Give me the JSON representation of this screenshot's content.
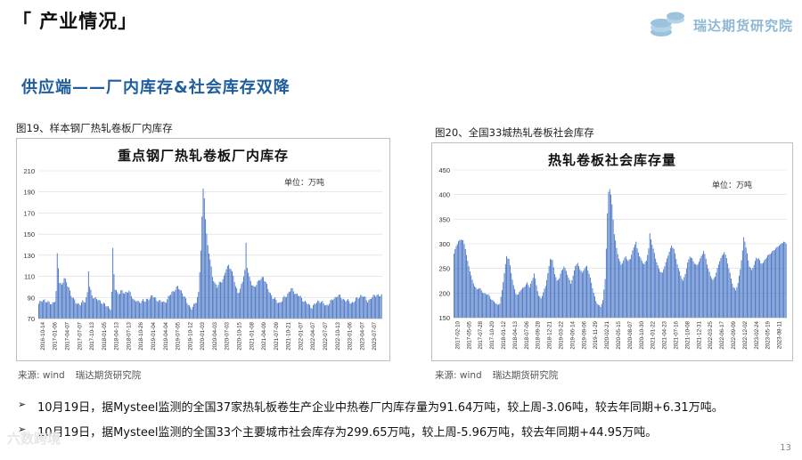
{
  "header": {
    "section_title": "「 产业情况」",
    "logo_text": "瑞达期货研究院",
    "subtitle": "供应端——厂内库存&社会库存双降"
  },
  "figures": [
    {
      "caption": "图19、样本钢厂热轧卷板厂内库存",
      "source_label": "来源:  wind",
      "source_org": "瑞达期货研究院"
    },
    {
      "caption": "图20、全国33城热轧卷板社会库存",
      "source_label": "来源:  wind",
      "source_org": "瑞达期货研究院"
    }
  ],
  "bullets": [
    "10月19日，据Mysteel监测的全国37家热轧板卷生产企业中热卷厂内库存量为91.64万吨，较上周-3.06吨，较去年同期+6.31万吨。",
    "10月19日，据Mysteel监测的全国33个主要城市社会库存为299.65万吨，较上周-5.96万吨，较去年同期+44.95万吨。"
  ],
  "page_number": "13",
  "watermark": "六数跨境",
  "colors": {
    "bar": "#4472c4",
    "title_blue": "#1f5d9c"
  },
  "chart_data": [
    {
      "type": "bar",
      "title": "重点钢厂热轧卷板厂内库存",
      "unit": "单位：万吨",
      "ylim": [
        70,
        210
      ],
      "yticks": [
        70,
        90,
        110,
        130,
        150,
        170,
        190,
        210
      ],
      "xticks": [
        "2016-10-14",
        "2017-01-06",
        "2017-04-07",
        "2017-07-07",
        "2017-10-13",
        "2018-01-05",
        "2018-04-13",
        "2018-07-13",
        "2018-10-26",
        "2019-01-04",
        "2019-04-04",
        "2019-07-05",
        "2019-10-12",
        "2020-01-03",
        "2020-04-03",
        "2020-07-03",
        "2020-10-15",
        "2021-01-08",
        "2021-04-09",
        "2021-07-09",
        "2021-10-21",
        "2022-01-07",
        "2022-04-07",
        "2022-07-07",
        "2022-10-13",
        "2023-01-06",
        "2023-04-07",
        "2023-07-07"
      ],
      "grid": true,
      "legend": "none",
      "anchors": [
        [
          0,
          84
        ],
        [
          2,
          86
        ],
        [
          5,
          88
        ],
        [
          8,
          85
        ],
        [
          11,
          84
        ],
        [
          14,
          87
        ],
        [
          15,
          95
        ],
        [
          16,
          130
        ],
        [
          17,
          118
        ],
        [
          18,
          105
        ],
        [
          20,
          102
        ],
        [
          22,
          108
        ],
        [
          24,
          104
        ],
        [
          26,
          100
        ],
        [
          28,
          92
        ],
        [
          30,
          88
        ],
        [
          32,
          86
        ],
        [
          34,
          84
        ],
        [
          36,
          83
        ],
        [
          38,
          86
        ],
        [
          40,
          87
        ],
        [
          41,
          90
        ],
        [
          42,
          94
        ],
        [
          43,
          115
        ],
        [
          44,
          100
        ],
        [
          46,
          92
        ],
        [
          48,
          90
        ],
        [
          50,
          88
        ],
        [
          52,
          87
        ],
        [
          54,
          86
        ],
        [
          56,
          84
        ],
        [
          58,
          82
        ],
        [
          60,
          81
        ],
        [
          62,
          80
        ],
        [
          63,
          95
        ],
        [
          64,
          135
        ],
        [
          65,
          112
        ],
        [
          66,
          98
        ],
        [
          68,
          95
        ],
        [
          70,
          94
        ],
        [
          72,
          96
        ],
        [
          74,
          94
        ],
        [
          76,
          96
        ],
        [
          78,
          95
        ],
        [
          80,
          92
        ],
        [
          82,
          88
        ],
        [
          84,
          87
        ],
        [
          86,
          85
        ],
        [
          88,
          86
        ],
        [
          90,
          88
        ],
        [
          92,
          86
        ],
        [
          94,
          88
        ],
        [
          96,
          90
        ],
        [
          98,
          92
        ],
        [
          100,
          89
        ],
        [
          102,
          88
        ],
        [
          104,
          87
        ],
        [
          106,
          86
        ],
        [
          108,
          85
        ],
        [
          110,
          87
        ],
        [
          112,
          90
        ],
        [
          114,
          93
        ],
        [
          116,
          96
        ],
        [
          118,
          98
        ],
        [
          120,
          100
        ],
        [
          122,
          97
        ],
        [
          124,
          95
        ],
        [
          126,
          90
        ],
        [
          128,
          85
        ],
        [
          130,
          82
        ],
        [
          132,
          80
        ],
        [
          134,
          82
        ],
        [
          136,
          86
        ],
        [
          138,
          95
        ],
        [
          139,
          115
        ],
        [
          140,
          135
        ],
        [
          141,
          165
        ],
        [
          142,
          192
        ],
        [
          143,
          185
        ],
        [
          144,
          165
        ],
        [
          145,
          150
        ],
        [
          146,
          140
        ],
        [
          148,
          125
        ],
        [
          150,
          110
        ],
        [
          152,
          104
        ],
        [
          154,
          100
        ],
        [
          156,
          103
        ],
        [
          158,
          106
        ],
        [
          160,
          110
        ],
        [
          162,
          117
        ],
        [
          164,
          120
        ],
        [
          166,
          118
        ],
        [
          168,
          110
        ],
        [
          170,
          100
        ],
        [
          172,
          95
        ],
        [
          174,
          98
        ],
        [
          176,
          105
        ],
        [
          178,
          115
        ],
        [
          179,
          142
        ],
        [
          180,
          120
        ],
        [
          182,
          108
        ],
        [
          184,
          102
        ],
        [
          186,
          100
        ],
        [
          188,
          103
        ],
        [
          190,
          105
        ],
        [
          192,
          108
        ],
        [
          194,
          110
        ],
        [
          196,
          104
        ],
        [
          198,
          98
        ],
        [
          200,
          94
        ],
        [
          202,
          90
        ],
        [
          204,
          88
        ],
        [
          206,
          86
        ],
        [
          208,
          85
        ],
        [
          210,
          87
        ],
        [
          212,
          90
        ],
        [
          214,
          92
        ],
        [
          216,
          95
        ],
        [
          218,
          98
        ],
        [
          220,
          96
        ],
        [
          222,
          94
        ],
        [
          224,
          92
        ],
        [
          226,
          90
        ],
        [
          228,
          88
        ],
        [
          230,
          86
        ],
        [
          232,
          84
        ],
        [
          234,
          82
        ],
        [
          236,
          81
        ],
        [
          238,
          83
        ],
        [
          240,
          85
        ],
        [
          242,
          87
        ],
        [
          244,
          86
        ],
        [
          246,
          84
        ],
        [
          248,
          82
        ],
        [
          250,
          84
        ],
        [
          252,
          86
        ],
        [
          254,
          88
        ],
        [
          256,
          90
        ],
        [
          258,
          92
        ],
        [
          260,
          91
        ],
        [
          262,
          89
        ],
        [
          264,
          88
        ],
        [
          266,
          87
        ],
        [
          268,
          86
        ],
        [
          270,
          85
        ],
        [
          272,
          86
        ],
        [
          274,
          88
        ],
        [
          276,
          90
        ],
        [
          278,
          92
        ],
        [
          280,
          91
        ],
        [
          282,
          89
        ],
        [
          284,
          87
        ],
        [
          286,
          88
        ],
        [
          288,
          90
        ],
        [
          290,
          92
        ],
        [
          292,
          93
        ],
        [
          294,
          91
        ],
        [
          296,
          92
        ]
      ]
    },
    {
      "type": "bar",
      "title": "热轧卷板社会库存量",
      "unit": "单位：万吨",
      "ylim": [
        150,
        450
      ],
      "yticks": [
        150,
        200,
        250,
        300,
        350,
        400,
        450
      ],
      "xticks": [
        "2017-02-10",
        "2017-05-05",
        "2017-07-28",
        "2017-10-20",
        "2018-01-12",
        "2018-04-13",
        "2018-07-06",
        "2018-09-28",
        "2018-12-21",
        "2019-03-22",
        "2019-06-14",
        "2019-09-06",
        "2019-11-29",
        "2020-02-21",
        "2020-05-15",
        "2020-08-07",
        "2020-10-30",
        "2021-01-22",
        "2021-04-23",
        "2021-07-16",
        "2021-10-08",
        "2021-12-31",
        "2022-03-25",
        "2022-06-17",
        "2022-09-09",
        "2022-12-02",
        "2023-02-24",
        "2023-05-19",
        "2023-08-11"
      ],
      "grid": true,
      "legend": "none",
      "anchors": [
        [
          0,
          280
        ],
        [
          2,
          295
        ],
        [
          4,
          305
        ],
        [
          6,
          310
        ],
        [
          8,
          306
        ],
        [
          10,
          290
        ],
        [
          12,
          265
        ],
        [
          14,
          245
        ],
        [
          16,
          225
        ],
        [
          18,
          215
        ],
        [
          20,
          208
        ],
        [
          22,
          210
        ],
        [
          24,
          205
        ],
        [
          26,
          200
        ],
        [
          28,
          198
        ],
        [
          30,
          196
        ],
        [
          32,
          190
        ],
        [
          34,
          185
        ],
        [
          36,
          180
        ],
        [
          38,
          175
        ],
        [
          40,
          180
        ],
        [
          42,
          205
        ],
        [
          44,
          240
        ],
        [
          46,
          275
        ],
        [
          48,
          270
        ],
        [
          50,
          240
        ],
        [
          52,
          215
        ],
        [
          54,
          200
        ],
        [
          56,
          196
        ],
        [
          58,
          205
        ],
        [
          60,
          210
        ],
        [
          62,
          215
        ],
        [
          64,
          220
        ],
        [
          66,
          212
        ],
        [
          68,
          225
        ],
        [
          70,
          240
        ],
        [
          72,
          215
        ],
        [
          74,
          195
        ],
        [
          76,
          190
        ],
        [
          78,
          200
        ],
        [
          80,
          215
        ],
        [
          82,
          240
        ],
        [
          84,
          270
        ],
        [
          86,
          265
        ],
        [
          88,
          240
        ],
        [
          90,
          225
        ],
        [
          92,
          230
        ],
        [
          94,
          245
        ],
        [
          96,
          255
        ],
        [
          98,
          245
        ],
        [
          100,
          230
        ],
        [
          102,
          220
        ],
        [
          104,
          235
        ],
        [
          106,
          255
        ],
        [
          108,
          260
        ],
        [
          110,
          250
        ],
        [
          112,
          240
        ],
        [
          114,
          250
        ],
        [
          116,
          255
        ],
        [
          118,
          240
        ],
        [
          120,
          220
        ],
        [
          122,
          200
        ],
        [
          124,
          185
        ],
        [
          126,
          175
        ],
        [
          128,
          172
        ],
        [
          130,
          185
        ],
        [
          132,
          230
        ],
        [
          133,
          290
        ],
        [
          134,
          360
        ],
        [
          135,
          405
        ],
        [
          136,
          412
        ],
        [
          137,
          400
        ],
        [
          138,
          380
        ],
        [
          139,
          350
        ],
        [
          140,
          320
        ],
        [
          142,
          290
        ],
        [
          144,
          270
        ],
        [
          146,
          258
        ],
        [
          148,
          265
        ],
        [
          150,
          275
        ],
        [
          152,
          265
        ],
        [
          154,
          270
        ],
        [
          156,
          285
        ],
        [
          158,
          300
        ],
        [
          159,
          305
        ],
        [
          160,
          290
        ],
        [
          162,
          275
        ],
        [
          164,
          265
        ],
        [
          166,
          260
        ],
        [
          168,
          265
        ],
        [
          170,
          290
        ],
        [
          171,
          320
        ],
        [
          172,
          310
        ],
        [
          174,
          290
        ],
        [
          176,
          270
        ],
        [
          178,
          255
        ],
        [
          180,
          245
        ],
        [
          182,
          240
        ],
        [
          184,
          255
        ],
        [
          186,
          270
        ],
        [
          188,
          285
        ],
        [
          190,
          295
        ],
        [
          192,
          290
        ],
        [
          194,
          270
        ],
        [
          196,
          250
        ],
        [
          198,
          235
        ],
        [
          200,
          225
        ],
        [
          202,
          240
        ],
        [
          204,
          260
        ],
        [
          206,
          275
        ],
        [
          208,
          270
        ],
        [
          210,
          260
        ],
        [
          212,
          255
        ],
        [
          214,
          265
        ],
        [
          216,
          275
        ],
        [
          218,
          285
        ],
        [
          220,
          270
        ],
        [
          222,
          250
        ],
        [
          224,
          235
        ],
        [
          226,
          225
        ],
        [
          228,
          235
        ],
        [
          230,
          250
        ],
        [
          232,
          265
        ],
        [
          234,
          275
        ],
        [
          236,
          285
        ],
        [
          238,
          270
        ],
        [
          240,
          250
        ],
        [
          242,
          230
        ],
        [
          244,
          212
        ],
        [
          246,
          205
        ],
        [
          248,
          220
        ],
        [
          250,
          250
        ],
        [
          252,
          285
        ],
        [
          253,
          312
        ],
        [
          254,
          305
        ],
        [
          256,
          280
        ],
        [
          258,
          255
        ],
        [
          260,
          245
        ],
        [
          262,
          258
        ],
        [
          264,
          272
        ],
        [
          266,
          270
        ],
        [
          268,
          260
        ],
        [
          270,
          262
        ],
        [
          272,
          270
        ],
        [
          274,
          275
        ],
        [
          276,
          280
        ],
        [
          278,
          285
        ],
        [
          280,
          288
        ],
        [
          282,
          292
        ],
        [
          284,
          298
        ],
        [
          286,
          300
        ],
        [
          288,
          304
        ],
        [
          290,
          300
        ]
      ]
    }
  ]
}
